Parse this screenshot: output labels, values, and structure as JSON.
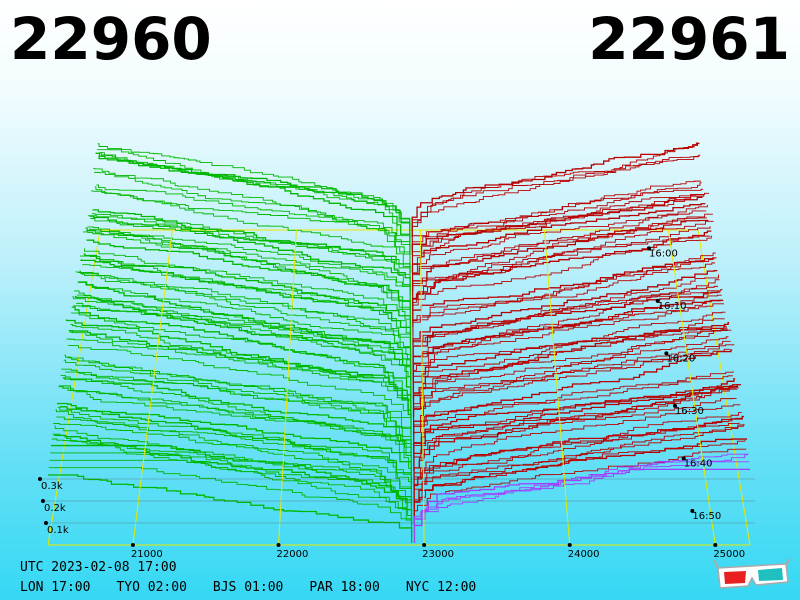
{
  "header": {
    "bid_price": "22960",
    "ask_price": "22961"
  },
  "colors": {
    "bid": "#00b800",
    "ask": "#b80000",
    "frame": "#e8e800",
    "tail": "#a040ff"
  },
  "footer": {
    "utc": "UTC 2023-02-08 17:00",
    "cities": [
      "LON 17:00",
      "TYO 02:00",
      "BJS 01:00",
      "PAR 18:00",
      "NYC 12:00"
    ]
  },
  "glasses_icon": "3d-glasses-icon",
  "chart_data": {
    "type": "3d-depth-surface",
    "price_axis": {
      "ticks": [
        21000,
        22000,
        23000,
        24000,
        25000
      ]
    },
    "volume_axis": {
      "ticks": [
        "0.3k",
        "0.2k",
        "0.1k"
      ]
    },
    "time_axis": {
      "ticks": [
        "16:00",
        "16:10",
        "16:20",
        "16:30",
        "16:40",
        "16:50"
      ]
    },
    "series": [
      {
        "name": "bid",
        "price": 22960
      },
      {
        "name": "ask",
        "price": 22961
      }
    ]
  }
}
